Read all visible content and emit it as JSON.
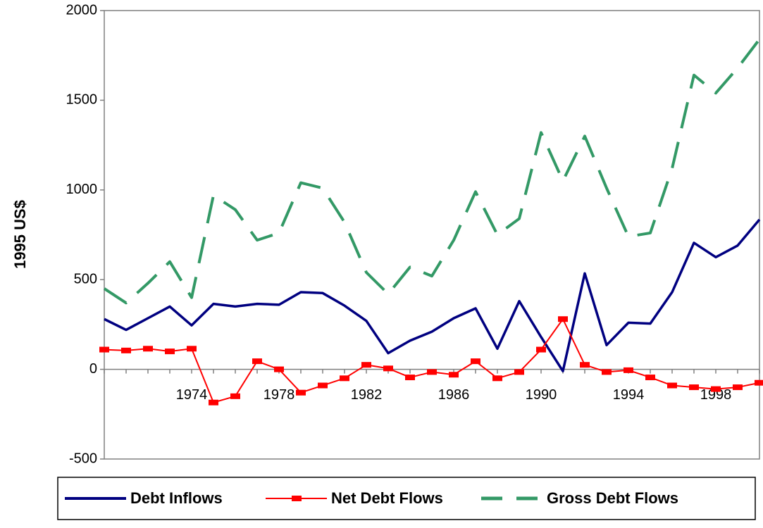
{
  "chart_data": {
    "type": "line",
    "y_label": "1995 US$",
    "x": [
      1970,
      1971,
      1972,
      1973,
      1974,
      1975,
      1976,
      1977,
      1978,
      1979,
      1980,
      1981,
      1982,
      1983,
      1984,
      1985,
      1986,
      1987,
      1988,
      1989,
      1990,
      1991,
      1992,
      1993,
      1994,
      1995,
      1996,
      1997,
      1998,
      1999,
      2000
    ],
    "xlim": [
      1970,
      2000
    ],
    "xticks": [
      1974,
      1978,
      1982,
      1986,
      1990,
      1994,
      1998
    ],
    "ylim": [
      -500,
      2000
    ],
    "yticks": [
      -500,
      0,
      500,
      1000,
      1500,
      2000
    ],
    "series": [
      {
        "name": "Debt Inflows",
        "color": "#000080",
        "dash": false,
        "marker": "none",
        "values": [
          280,
          220,
          285,
          350,
          245,
          365,
          350,
          365,
          360,
          430,
          425,
          355,
          270,
          90,
          160,
          210,
          285,
          340,
          115,
          380,
          180,
          -10,
          535,
          135,
          260,
          255,
          430,
          705,
          625,
          690,
          835
        ]
      },
      {
        "name": "Net Debt Flows",
        "color": "#ff0000",
        "dash": false,
        "marker": "square",
        "values": [
          110,
          105,
          115,
          100,
          115,
          -185,
          -150,
          45,
          0,
          -130,
          -90,
          -50,
          25,
          5,
          -45,
          -15,
          -30,
          45,
          -50,
          -15,
          110,
          280,
          25,
          -15,
          -5,
          -45,
          -90,
          -100,
          -110,
          -100,
          -75
        ]
      },
      {
        "name": "Gross Debt Flows",
        "color": "#339966",
        "dash": true,
        "marker": "none",
        "values": [
          450,
          370,
          480,
          600,
          400,
          970,
          890,
          720,
          760,
          1040,
          1010,
          820,
          540,
          420,
          570,
          520,
          720,
          990,
          750,
          840,
          1320,
          1050,
          1300,
          1010,
          740,
          760,
          1120,
          1640,
          1540,
          1680,
          1840
        ]
      }
    ]
  }
}
